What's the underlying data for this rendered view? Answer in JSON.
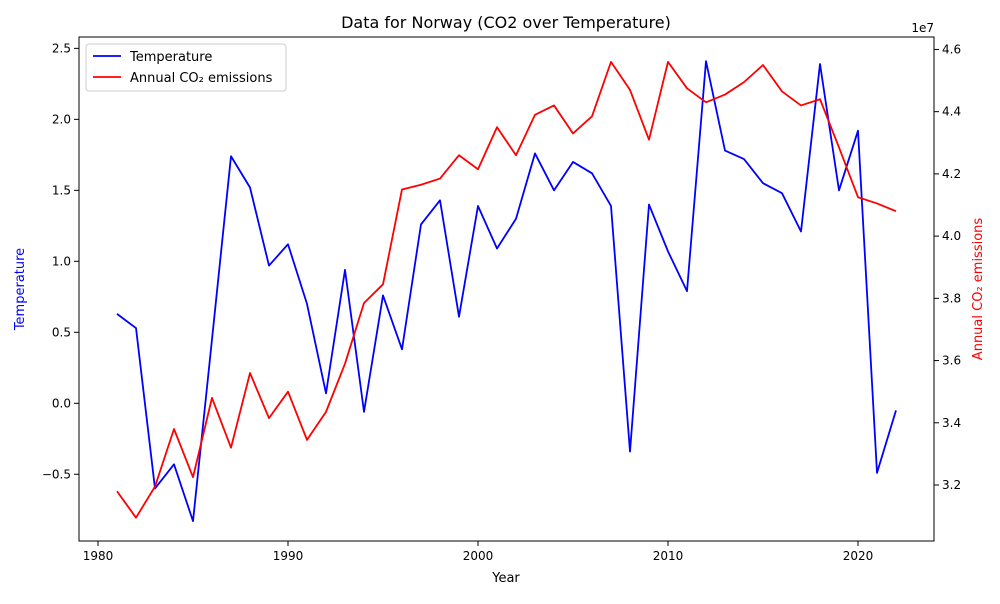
{
  "chart_data": {
    "type": "line",
    "title": "Data for Norway (CO2 over Temperature)",
    "xlabel": "Year",
    "ylabel_left": "Temperature",
    "ylabel_right": "Annual CO₂ emissions",
    "right_axis_offset_label": "1e7",
    "xlim": [
      1979,
      2024
    ],
    "ylim_left": [
      -0.97,
      2.58
    ],
    "ylim_right": [
      30.2,
      46.4
    ],
    "x_ticks": [
      1980,
      1990,
      2000,
      2010,
      2020
    ],
    "x_tick_labels": [
      "1980",
      "1990",
      "2000",
      "2010",
      "2020"
    ],
    "y_left_ticks": [
      -0.5,
      0.0,
      0.5,
      1.0,
      1.5,
      2.0,
      2.5
    ],
    "y_left_tick_labels": [
      "−0.5",
      "0.0",
      "0.5",
      "1.0",
      "1.5",
      "2.0",
      "2.5"
    ],
    "y_right_ticks": [
      32,
      34,
      36,
      38,
      40,
      42,
      44,
      46
    ],
    "y_right_tick_labels": [
      "3.2",
      "3.4",
      "3.6",
      "3.8",
      "4.0",
      "4.2",
      "4.4",
      "4.6"
    ],
    "legend_position": "top-left",
    "grid": false,
    "x": [
      1981,
      1982,
      1983,
      1984,
      1985,
      1986,
      1987,
      1988,
      1989,
      1990,
      1991,
      1992,
      1993,
      1994,
      1995,
      1996,
      1997,
      1998,
      1999,
      2000,
      2001,
      2002,
      2003,
      2004,
      2005,
      2006,
      2007,
      2008,
      2009,
      2010,
      2011,
      2012,
      2013,
      2014,
      2015,
      2016,
      2017,
      2018,
      2019,
      2020,
      2021,
      2022
    ],
    "series": [
      {
        "name": "Temperature",
        "axis": "left",
        "color": "#0000ff",
        "values": [
          0.63,
          0.53,
          -0.6,
          -0.43,
          -0.83,
          0.45,
          1.74,
          1.52,
          0.97,
          1.12,
          0.7,
          0.07,
          0.94,
          -0.06,
          0.76,
          0.38,
          1.26,
          1.43,
          0.61,
          1.39,
          1.09,
          1.3,
          1.76,
          1.5,
          1.7,
          1.62,
          1.39,
          -0.34,
          1.4,
          1.07,
          0.79,
          2.41,
          1.78,
          1.72,
          1.55,
          1.48,
          1.21,
          2.39,
          1.5,
          1.92,
          -0.49,
          -0.05
        ]
      },
      {
        "name": "Annual CO₂ emissions",
        "axis": "right",
        "color": "#ff0000",
        "values": [
          31.8,
          30.95,
          31.95,
          33.8,
          32.25,
          34.8,
          33.2,
          35.6,
          34.15,
          35.0,
          33.45,
          34.35,
          35.9,
          37.85,
          38.45,
          41.5,
          41.65,
          41.85,
          42.6,
          42.15,
          43.5,
          42.6,
          43.9,
          44.2,
          43.3,
          43.85,
          45.6,
          44.7,
          43.1,
          45.6,
          44.75,
          44.3,
          44.55,
          44.95,
          45.5,
          44.65,
          44.2,
          44.4,
          42.85,
          41.25,
          41.05,
          40.8
        ]
      }
    ]
  }
}
